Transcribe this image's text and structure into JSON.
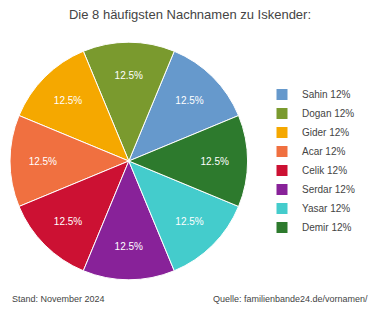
{
  "chart_data": {
    "type": "pie",
    "title": "Die 8 häufigsten Nachnamen zu Iskender:",
    "categories": [
      "Sahin 12%",
      "Dogan 12%",
      "Gider 12%",
      "Acar 12%",
      "Celik 12%",
      "Serdar 12%",
      "Yasar 12%",
      "Demir 12%"
    ],
    "values": [
      12.5,
      12.5,
      12.5,
      12.5,
      12.5,
      12.5,
      12.5,
      12.5
    ],
    "value_labels": [
      "12.5%",
      "12.5%",
      "12.5%",
      "12.5%",
      "12.5%",
      "12.5%",
      "12.5%",
      "12.5%"
    ],
    "colors": [
      "#6699cc",
      "#7a9a2e",
      "#f5a800",
      "#f07040",
      "#cc1133",
      "#882299",
      "#44cccc",
      "#2d7a2d"
    ],
    "data_labels": true,
    "legend": "right",
    "annotations": [
      "Stand: November 2024",
      "Quelle: familienbande24.de/vornamen/"
    ]
  }
}
